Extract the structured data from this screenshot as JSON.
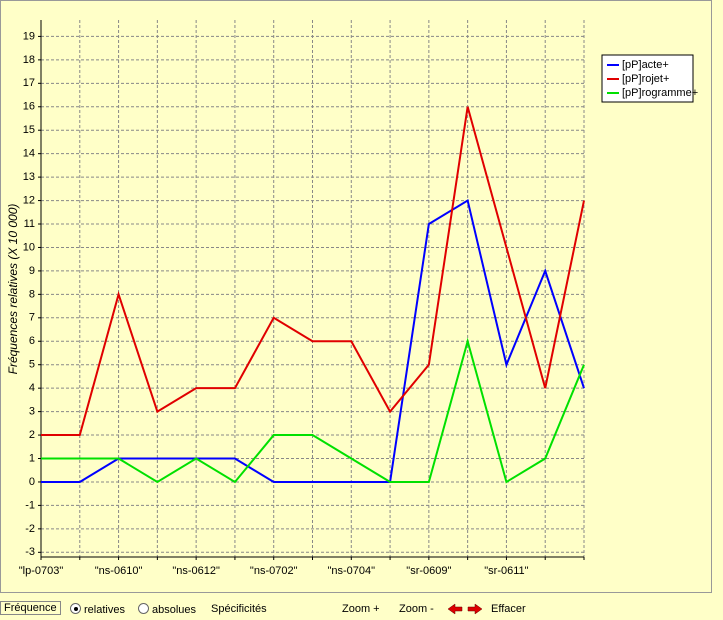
{
  "chart_data": {
    "type": "line",
    "y_label": "Fréquences relatives (X 10 000)",
    "categories": [
      "\"lp-0703\"",
      null,
      "\"ns-0610\"",
      null,
      "\"ns-0612\"",
      null,
      "\"ns-0702\"",
      null,
      "\"ns-0704\"",
      null,
      "\"sr-0609\"",
      null,
      "\"sr-0611\"",
      null,
      null
    ],
    "series": [
      {
        "name": "[pP]acte+",
        "color": "#0000ff",
        "values": [
          0,
          0,
          1,
          1,
          1,
          1,
          0,
          0,
          0,
          0,
          11,
          12,
          5,
          9,
          4
        ]
      },
      {
        "name": "[pP]rojet+",
        "color": "#e00000",
        "values": [
          2,
          2,
          8,
          3,
          4,
          4,
          7,
          6,
          6,
          3,
          5,
          16,
          10,
          4,
          12
        ]
      },
      {
        "name": "[pP]rogramme+",
        "color": "#00e000",
        "values": [
          1,
          1,
          1,
          0,
          1,
          0,
          2,
          2,
          1,
          0,
          0,
          6,
          0,
          1,
          5
        ]
      }
    ],
    "ylim": [
      -3.2,
      19.7
    ],
    "yticks": [
      -3,
      -2,
      -1,
      0,
      1,
      2,
      3,
      4,
      5,
      6,
      7,
      8,
      9,
      10,
      11,
      12,
      13,
      14,
      15,
      16,
      17,
      18,
      19
    ],
    "grid": true,
    "legend": "top-right"
  },
  "toolbar": {
    "frequency": "Fréquence",
    "relatives": "relatives",
    "absolues": "absolues",
    "specificites": "Spécificités",
    "zoom_in": "Zoom +",
    "zoom_out": "Zoom -",
    "clear": "Effacer"
  }
}
